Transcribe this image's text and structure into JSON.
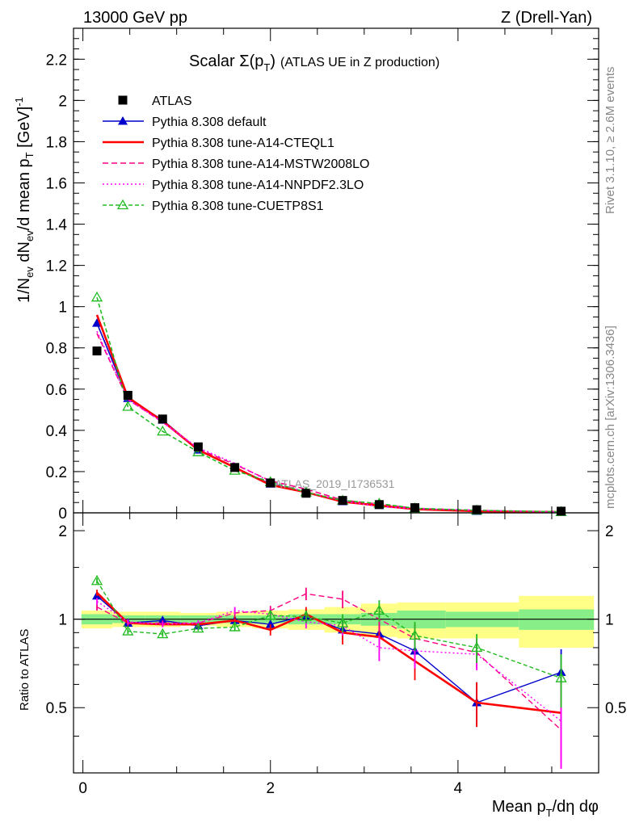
{
  "header": {
    "left": "13000 GeV pp",
    "right": "Z (Drell-Yan)"
  },
  "side_labels": {
    "rivet": "Rivet 3.1.10, ≥ 2.6M events",
    "mcplots": "mcplots.cern.ch [arXiv:1306.3436]"
  },
  "watermark": "ATLAS_2019_I1736531",
  "chart_data": {
    "type": "line",
    "title": "Scalar Σ(pT) (ATLAS UE in Z production)",
    "xlabel": "Mean pT/dη dφ",
    "ylabel": "1/Nev dNev/d mean pT [GeV]⁻¹",
    "ratio_ylabel": "Ratio to ATLAS",
    "xlim": [
      -0.1,
      5.5
    ],
    "ylim": [
      0,
      2.35
    ],
    "ratio_ylim": [
      0.3,
      2.3
    ],
    "grid": false,
    "legend_position": "top-left",
    "x_ticks": [
      "0",
      "2",
      "4"
    ],
    "y_ticks": [
      "0",
      "0.2",
      "0.4",
      "0.6",
      "0.8",
      "1",
      "1.2",
      "1.4",
      "1.6",
      "1.8",
      "2",
      "2.2"
    ],
    "ratio_y_ticks": [
      "0.5",
      "1",
      "2"
    ],
    "x": [
      0.15,
      0.48,
      0.85,
      1.23,
      1.62,
      2.0,
      2.38,
      2.77,
      3.16,
      3.54,
      4.2,
      5.1
    ],
    "data": {
      "name": "ATLAS",
      "values": [
        0.785,
        0.57,
        0.455,
        0.32,
        0.22,
        0.145,
        0.095,
        0.06,
        0.04,
        0.025,
        0.015,
        0.008
      ],
      "band_inner": [
        0.04,
        0.03,
        0.03,
        0.03,
        0.03,
        0.03,
        0.04,
        0.04,
        0.05,
        0.07,
        0.06,
        0.08
      ],
      "band_outer": [
        0.07,
        0.06,
        0.06,
        0.05,
        0.06,
        0.07,
        0.08,
        0.1,
        0.13,
        0.14,
        0.14,
        0.2
      ]
    },
    "series": [
      {
        "name": "Pythia 8.308 default",
        "color": "#0000cc",
        "dash": "",
        "marker": "triangle-filled",
        "values": [
          0.92,
          0.555,
          0.45,
          0.305,
          0.22,
          0.14,
          0.1,
          0.055,
          0.036,
          0.02,
          0.008,
          0.005
        ],
        "ratio": [
          1.2,
          0.97,
          0.99,
          0.95,
          0.99,
          0.96,
          1.03,
          0.92,
          0.89,
          0.78,
          0.52,
          0.66
        ],
        "ratio_err": [
          0.03,
          0.02,
          0.02,
          0.02,
          0.03,
          0.04,
          0.05,
          0.07,
          0.09,
          0.1,
          0.09,
          0.13
        ]
      },
      {
        "name": "Pythia 8.308 tune-A14-CTEQL1",
        "color": "#ff0000",
        "dash": "",
        "marker": "none",
        "values": [
          0.96,
          0.56,
          0.445,
          0.305,
          0.22,
          0.135,
          0.1,
          0.054,
          0.035,
          0.018,
          0.008,
          0.004
        ],
        "ratio": [
          1.23,
          0.97,
          0.96,
          0.96,
          0.99,
          0.92,
          1.04,
          0.9,
          0.87,
          0.72,
          0.52,
          0.48
        ],
        "ratio_err": [
          0.03,
          0.02,
          0.02,
          0.02,
          0.03,
          0.04,
          0.06,
          0.08,
          0.09,
          0.1,
          0.09,
          0.15
        ]
      },
      {
        "name": "Pythia 8.308 tune-A14-MSTW2008LO",
        "color": "#ff0080",
        "dash": "7,4",
        "marker": "none",
        "values": [
          0.87,
          0.55,
          0.44,
          0.31,
          0.235,
          0.155,
          0.115,
          0.062,
          0.042,
          0.022,
          0.012,
          0.004
        ],
        "ratio": [
          1.1,
          0.97,
          0.97,
          0.97,
          1.05,
          1.07,
          1.22,
          1.17,
          1.0,
          0.86,
          0.77,
          0.42
        ],
        "ratio_err": [
          0.03,
          0.02,
          0.02,
          0.02,
          0.03,
          0.04,
          0.06,
          0.08,
          0.1,
          0.1,
          0.09,
          0.15
        ]
      },
      {
        "name": "Pythia 8.308 tune-A14-NNPDF2.3LO",
        "color": "#ff00ff",
        "dash": "2,3",
        "marker": "none",
        "values": [
          0.88,
          0.55,
          0.44,
          0.315,
          0.24,
          0.15,
          0.1,
          0.058,
          0.03,
          0.02,
          0.012,
          0.004
        ],
        "ratio": [
          1.15,
          0.98,
          0.96,
          0.97,
          1.07,
          1.04,
          0.98,
          0.95,
          0.8,
          0.78,
          0.76,
          0.45
        ],
        "ratio_err": [
          0.03,
          0.02,
          0.02,
          0.02,
          0.03,
          0.04,
          0.05,
          0.07,
          0.08,
          0.1,
          0.09,
          0.14
        ]
      },
      {
        "name": "Pythia 8.308 tune-CUETP8S1",
        "color": "#22bb22",
        "dash": "5,3",
        "marker": "triangle-open",
        "values": [
          1.045,
          0.515,
          0.395,
          0.295,
          0.205,
          0.15,
          0.1,
          0.06,
          0.045,
          0.022,
          0.012,
          0.005
        ],
        "ratio": [
          1.35,
          0.91,
          0.89,
          0.93,
          0.94,
          1.03,
          1.02,
          0.97,
          1.07,
          0.88,
          0.8,
          0.63
        ],
        "ratio_err": [
          0.03,
          0.02,
          0.02,
          0.02,
          0.03,
          0.04,
          0.05,
          0.07,
          0.09,
          0.1,
          0.09,
          0.13
        ]
      }
    ]
  }
}
